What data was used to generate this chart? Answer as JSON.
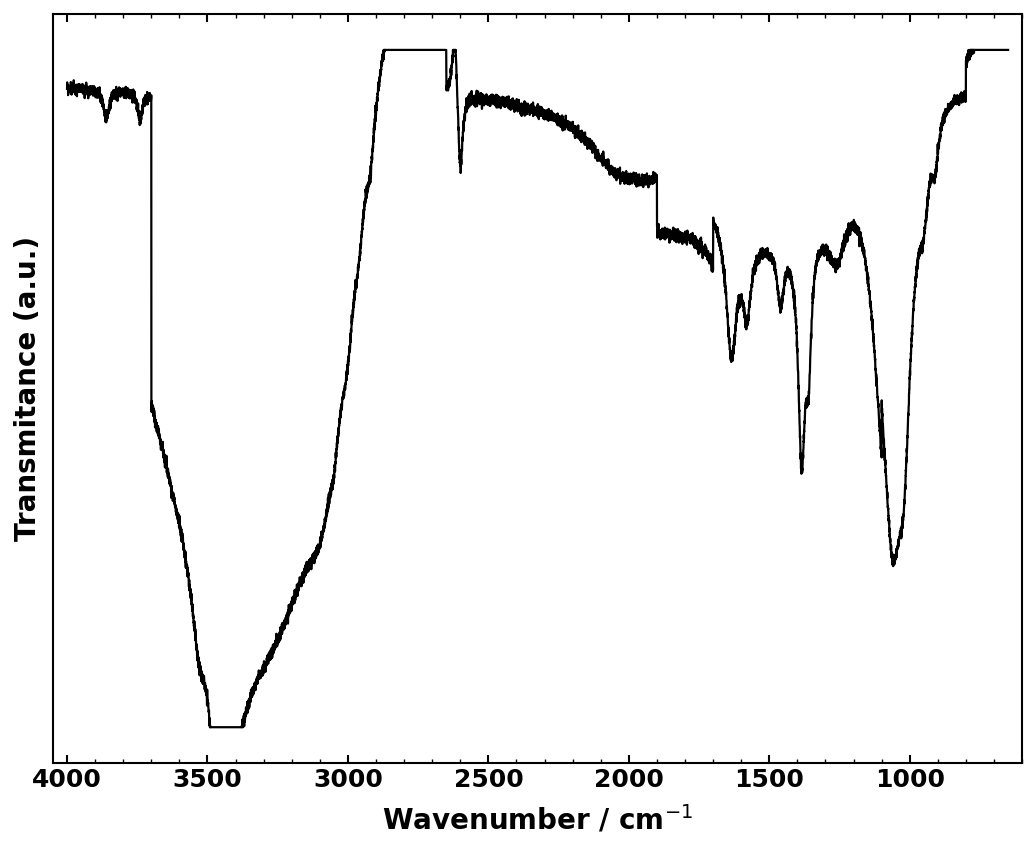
{
  "xlabel": "Wavenumber / cm$^{-1}$",
  "ylabel": "Transmitance (a.u.)",
  "line_color": "#000000",
  "line_width": 1.6,
  "background_color": "#ffffff",
  "label_fontsize": 20,
  "tick_fontsize": 18
}
